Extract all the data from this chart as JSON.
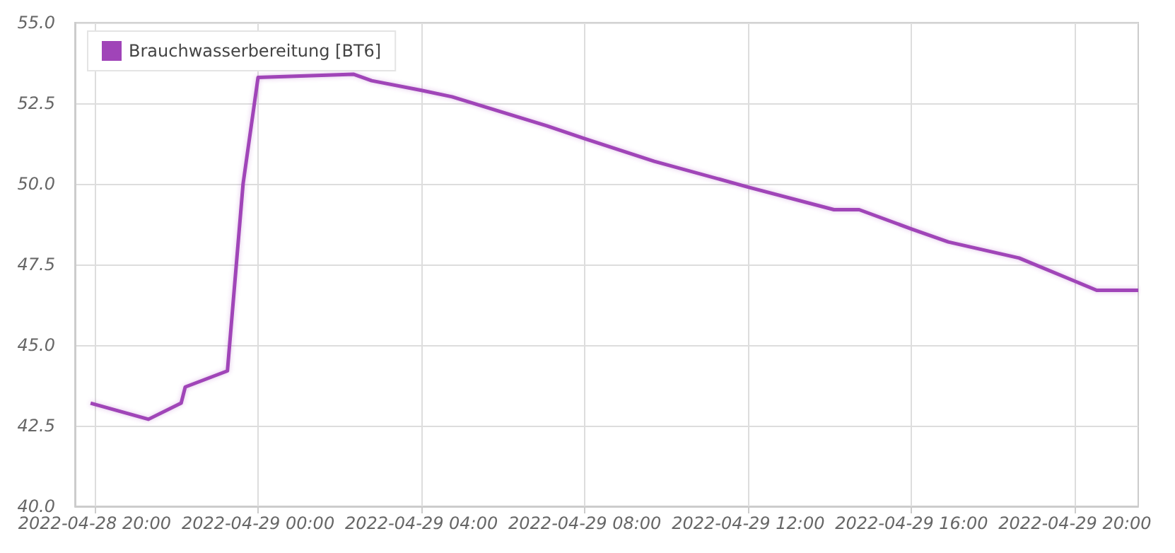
{
  "chart_data": {
    "type": "line",
    "legend": "top left",
    "grid": true,
    "marker": "none",
    "line_style": "solid",
    "xlim": [
      "2022-04-28T19:31",
      "2022-04-29T21:33"
    ],
    "xticks": [
      {
        "value": "2022-04-28T20:00",
        "label": "2022-04-28 20:00"
      },
      {
        "value": "2022-04-29T00:00",
        "label": "2022-04-29 00:00"
      },
      {
        "value": "2022-04-29T04:00",
        "label": "2022-04-29 04:00"
      },
      {
        "value": "2022-04-29T08:00",
        "label": "2022-04-29 08:00"
      },
      {
        "value": "2022-04-29T12:00",
        "label": "2022-04-29 12:00"
      },
      {
        "value": "2022-04-29T16:00",
        "label": "2022-04-29 16:00"
      },
      {
        "value": "2022-04-29T20:00",
        "label": "2022-04-29 20:00"
      }
    ],
    "ylim": [
      40,
      55
    ],
    "yticks": [
      {
        "value": 40,
        "label": "40.0"
      },
      {
        "value": 42.5,
        "label": "42.5"
      },
      {
        "value": 45,
        "label": "45.0"
      },
      {
        "value": 47.5,
        "label": "47.5"
      },
      {
        "value": 50,
        "label": "50.0"
      },
      {
        "value": 52.5,
        "label": "52.5"
      },
      {
        "value": 55,
        "label": "55.0"
      }
    ],
    "x": [
      "2022-04-28T19:54",
      "2022-04-28T21:19",
      "2022-04-28T22:07",
      "2022-04-28T22:13",
      "2022-04-28T23:15",
      "2022-04-28T23:38",
      "2022-04-29T00:00",
      "2022-04-29T01:13",
      "2022-04-29T02:20",
      "2022-04-29T02:47",
      "2022-04-29T04:00",
      "2022-04-29T04:45",
      "2022-04-29T07:04",
      "2022-04-29T08:00",
      "2022-04-29T09:42",
      "2022-04-29T12:00",
      "2022-04-29T14:06",
      "2022-04-29T14:43",
      "2022-04-29T16:00",
      "2022-04-29T16:54",
      "2022-04-29T18:38",
      "2022-04-29T20:32",
      "2022-04-29T21:33"
    ],
    "series": [
      {
        "name": "Brauchwasserbereitung [BT6]",
        "color": "#a044b8",
        "values": [
          43.2,
          42.7,
          43.2,
          43.7,
          44.2,
          50.0,
          53.3,
          null,
          53.4,
          53.2,
          52.9,
          52.7,
          51.8,
          51.4,
          50.7,
          49.9,
          49.2,
          49.2,
          48.6,
          48.2,
          47.7,
          46.7,
          46.7
        ]
      }
    ]
  }
}
